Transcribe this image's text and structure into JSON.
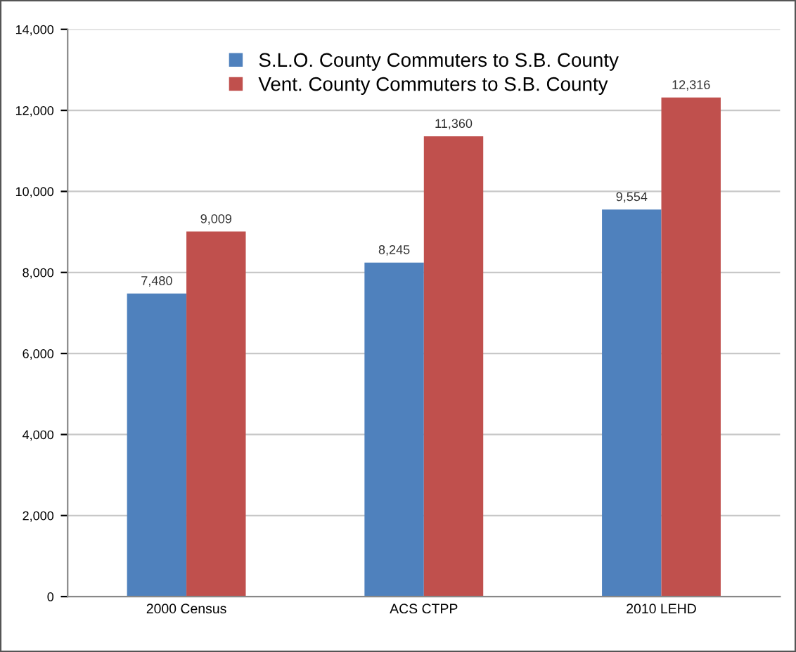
{
  "chart_data": {
    "type": "bar",
    "categories": [
      "2000 Census",
      "ACS CTPP",
      "2010 LEHD"
    ],
    "series": [
      {
        "name": "S.L.O. County Commuters to S.B. County",
        "color": "#4f81bd",
        "values": [
          7480,
          8245,
          9554
        ]
      },
      {
        "name": "Vent. County Commuters to S.B. County",
        "color": "#c0504d",
        "values": [
          9009,
          11360,
          12316
        ]
      }
    ],
    "value_labels": [
      [
        "7,480",
        "8,245",
        "9,554"
      ],
      [
        "9,009",
        "11,360",
        "12,316"
      ]
    ],
    "ylim": [
      0,
      14000
    ],
    "yticks": [
      {
        "value": 0,
        "label": "0"
      },
      {
        "value": 2000,
        "label": "2,000"
      },
      {
        "value": 4000,
        "label": "4,000"
      },
      {
        "value": 6000,
        "label": "6,000"
      },
      {
        "value": 8000,
        "label": "8,000"
      },
      {
        "value": 10000,
        "label": "10,000"
      },
      {
        "value": 12000,
        "label": "12,000"
      },
      {
        "value": 14000,
        "label": "14,000"
      }
    ],
    "grid": "y",
    "legend": "top"
  }
}
